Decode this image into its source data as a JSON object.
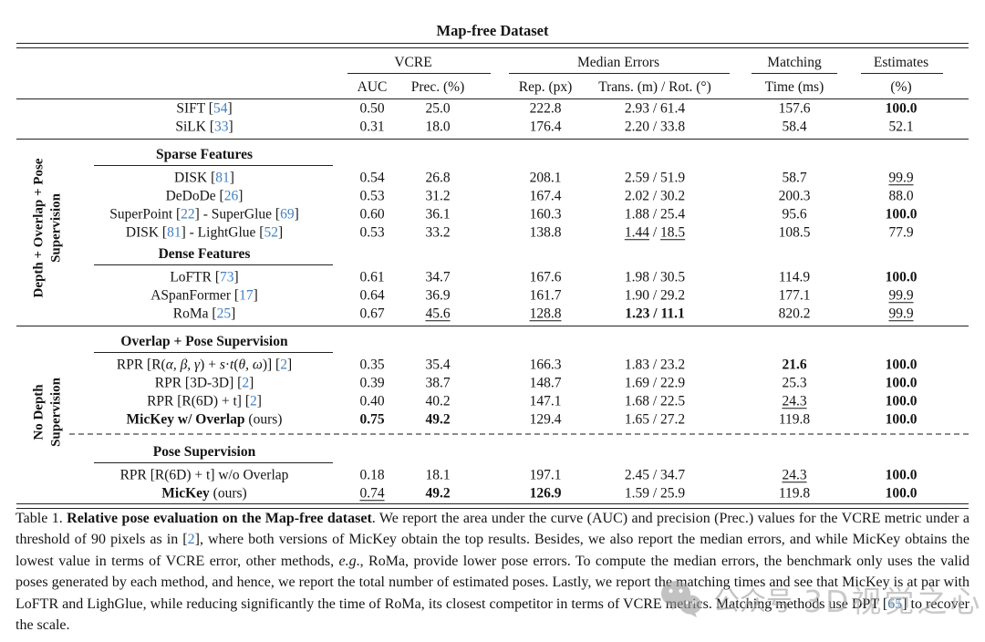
{
  "title": "Map-free Dataset",
  "colors": {
    "citation_blue": "#4080c0",
    "rule": "#222222",
    "watermark_gray": "#9b9b9b"
  },
  "header": {
    "groups": [
      {
        "label": "VCRE"
      },
      {
        "label": "Median Errors"
      },
      {
        "label": "Matching"
      },
      {
        "label": "Estimates"
      }
    ],
    "subs": [
      {
        "key": "auc",
        "label": "AUC"
      },
      {
        "key": "prec",
        "label": "Prec. (%)"
      },
      {
        "key": "rep",
        "label": "Rep. (px)"
      },
      {
        "key": "tr",
        "label": "Trans. (m) / Rot. (°)"
      },
      {
        "key": "time",
        "label": "Time (ms)"
      },
      {
        "key": "est",
        "label": "(%)"
      }
    ]
  },
  "side_labels": [
    {
      "lines": [
        "Depth + Overlap + Pose",
        "Supervision"
      ]
    },
    {
      "lines": [
        "No Depth",
        "Supervision"
      ]
    }
  ],
  "rows": [
    {
      "type": "data",
      "method": [
        {
          "t": "SIFT ["
        },
        {
          "t": "54",
          "s": "cite"
        },
        {
          "t": "]"
        }
      ],
      "auc": {
        "t": "0.50"
      },
      "prec": {
        "t": "25.0"
      },
      "rep": {
        "t": "222.8"
      },
      "trans": {
        "t": "2.93"
      },
      "rot": {
        "t": "61.4"
      },
      "time": {
        "t": "157.6"
      },
      "est": {
        "t": "100.0",
        "s": "b"
      }
    },
    {
      "type": "data",
      "method": [
        {
          "t": "SiLK ["
        },
        {
          "t": "33",
          "s": "cite"
        },
        {
          "t": "]"
        }
      ],
      "auc": {
        "t": "0.31"
      },
      "prec": {
        "t": "18.0"
      },
      "rep": {
        "t": "176.4"
      },
      "trans": {
        "t": "2.20"
      },
      "rot": {
        "t": "33.8"
      },
      "time": {
        "t": "58.4"
      },
      "est": {
        "t": "52.1"
      }
    },
    {
      "type": "rule"
    },
    {
      "type": "subheader",
      "label": "Sparse Features"
    },
    {
      "type": "data",
      "method": [
        {
          "t": "DISK ["
        },
        {
          "t": "81",
          "s": "cite"
        },
        {
          "t": "]"
        }
      ],
      "auc": {
        "t": "0.54"
      },
      "prec": {
        "t": "26.8"
      },
      "rep": {
        "t": "208.1"
      },
      "trans": {
        "t": "2.59"
      },
      "rot": {
        "t": "51.9"
      },
      "time": {
        "t": "58.7"
      },
      "est": {
        "t": "99.9",
        "s": "u"
      }
    },
    {
      "type": "data",
      "method": [
        {
          "t": "DeDoDe ["
        },
        {
          "t": "26",
          "s": "cite"
        },
        {
          "t": "]"
        }
      ],
      "auc": {
        "t": "0.53"
      },
      "prec": {
        "t": "31.2"
      },
      "rep": {
        "t": "167.4"
      },
      "trans": {
        "t": "2.02"
      },
      "rot": {
        "t": "30.2"
      },
      "time": {
        "t": "200.3"
      },
      "est": {
        "t": "88.0"
      }
    },
    {
      "type": "data",
      "method": [
        {
          "t": "SuperPoint ["
        },
        {
          "t": "22",
          "s": "cite"
        },
        {
          "t": "] - SuperGlue ["
        },
        {
          "t": "69",
          "s": "cite"
        },
        {
          "t": "]"
        }
      ],
      "auc": {
        "t": "0.60"
      },
      "prec": {
        "t": "36.1"
      },
      "rep": {
        "t": "160.3"
      },
      "trans": {
        "t": "1.88"
      },
      "rot": {
        "t": "25.4"
      },
      "time": {
        "t": "95.6"
      },
      "est": {
        "t": "100.0",
        "s": "b"
      }
    },
    {
      "type": "data",
      "method": [
        {
          "t": "DISK ["
        },
        {
          "t": "81",
          "s": "cite"
        },
        {
          "t": "] - LightGlue ["
        },
        {
          "t": "52",
          "s": "cite"
        },
        {
          "t": "]"
        }
      ],
      "auc": {
        "t": "0.53"
      },
      "prec": {
        "t": "33.2"
      },
      "rep": {
        "t": "138.8"
      },
      "trans": {
        "t": "1.44",
        "s": "u"
      },
      "rot": {
        "t": "18.5",
        "s": "u"
      },
      "time": {
        "t": "108.5"
      },
      "est": {
        "t": "77.9"
      }
    },
    {
      "type": "subheader",
      "label": "Dense Features"
    },
    {
      "type": "data",
      "method": [
        {
          "t": "LoFTR ["
        },
        {
          "t": "73",
          "s": "cite"
        },
        {
          "t": "]"
        }
      ],
      "auc": {
        "t": "0.61"
      },
      "prec": {
        "t": "34.7"
      },
      "rep": {
        "t": "167.6"
      },
      "trans": {
        "t": "1.98"
      },
      "rot": {
        "t": "30.5"
      },
      "time": {
        "t": "114.9"
      },
      "est": {
        "t": "100.0",
        "s": "b"
      }
    },
    {
      "type": "data",
      "method": [
        {
          "t": "ASpanFormer ["
        },
        {
          "t": "17",
          "s": "cite"
        },
        {
          "t": "]"
        }
      ],
      "auc": {
        "t": "0.64"
      },
      "prec": {
        "t": "36.9"
      },
      "rep": {
        "t": "161.7"
      },
      "trans": {
        "t": "1.90"
      },
      "rot": {
        "t": "29.2"
      },
      "time": {
        "t": "177.1"
      },
      "est": {
        "t": "99.9",
        "s": "u"
      }
    },
    {
      "type": "data",
      "method": [
        {
          "t": "RoMa ["
        },
        {
          "t": "25",
          "s": "cite"
        },
        {
          "t": "]"
        }
      ],
      "auc": {
        "t": "0.67"
      },
      "prec": {
        "t": "45.6",
        "s": "u"
      },
      "rep": {
        "t": "128.8",
        "s": "u"
      },
      "trans": {
        "t": "1.23",
        "s": "b"
      },
      "rot": {
        "t": "11.1",
        "s": "b"
      },
      "time": {
        "t": "820.2"
      },
      "est": {
        "t": "99.9",
        "s": "u"
      }
    },
    {
      "type": "rule"
    },
    {
      "type": "subheader",
      "label": "Overlap + Pose Supervision"
    },
    {
      "type": "data",
      "method": [
        {
          "t": "RPR [R("
        },
        {
          "t": "α, β, γ",
          "s": "i"
        },
        {
          "t": ") + "
        },
        {
          "t": "s",
          "s": "i"
        },
        {
          "t": "·"
        },
        {
          "t": "t",
          "s": "i"
        },
        {
          "t": "("
        },
        {
          "t": "θ, ω",
          "s": "i"
        },
        {
          "t": ")] ["
        },
        {
          "t": "2",
          "s": "cite"
        },
        {
          "t": "]"
        }
      ],
      "auc": {
        "t": "0.35"
      },
      "prec": {
        "t": "35.4"
      },
      "rep": {
        "t": "166.3"
      },
      "trans": {
        "t": "1.83"
      },
      "rot": {
        "t": "23.2"
      },
      "time": {
        "t": "21.6",
        "s": "b"
      },
      "est": {
        "t": "100.0",
        "s": "b"
      }
    },
    {
      "type": "data",
      "method": [
        {
          "t": "RPR [3D-3D] ["
        },
        {
          "t": "2",
          "s": "cite"
        },
        {
          "t": "]"
        }
      ],
      "auc": {
        "t": "0.39"
      },
      "prec": {
        "t": "38.7"
      },
      "rep": {
        "t": "148.7"
      },
      "trans": {
        "t": "1.69"
      },
      "rot": {
        "t": "22.9"
      },
      "time": {
        "t": "25.3"
      },
      "est": {
        "t": "100.0",
        "s": "b"
      }
    },
    {
      "type": "data",
      "method": [
        {
          "t": "RPR [R(6D) + t] ["
        },
        {
          "t": "2",
          "s": "cite"
        },
        {
          "t": "]"
        }
      ],
      "auc": {
        "t": "0.40"
      },
      "prec": {
        "t": "40.2"
      },
      "rep": {
        "t": "147.1"
      },
      "trans": {
        "t": "1.68"
      },
      "rot": {
        "t": "22.5"
      },
      "time": {
        "t": "24.3",
        "s": "u"
      },
      "est": {
        "t": "100.0",
        "s": "b"
      }
    },
    {
      "type": "data",
      "method": [
        {
          "t": "MicKey w/ Overlap",
          "s": "b"
        },
        {
          "t": " (ours)"
        }
      ],
      "auc": {
        "t": "0.75",
        "s": "b"
      },
      "prec": {
        "t": "49.2",
        "s": "b"
      },
      "rep": {
        "t": "129.4"
      },
      "trans": {
        "t": "1.65"
      },
      "rot": {
        "t": "27.2"
      },
      "time": {
        "t": "119.8"
      },
      "est": {
        "t": "100.0",
        "s": "b"
      }
    },
    {
      "type": "dashed"
    },
    {
      "type": "subheader",
      "label": "Pose Supervision"
    },
    {
      "type": "data",
      "method": [
        {
          "t": "RPR [R(6D) + t] w/o Overlap"
        }
      ],
      "auc": {
        "t": "0.18"
      },
      "prec": {
        "t": "18.1"
      },
      "rep": {
        "t": "197.1"
      },
      "trans": {
        "t": "2.45"
      },
      "rot": {
        "t": "34.7"
      },
      "time": {
        "t": "24.3",
        "s": "u"
      },
      "est": {
        "t": "100.0",
        "s": "b"
      }
    },
    {
      "type": "data",
      "method": [
        {
          "t": "MicKey",
          "s": "b"
        },
        {
          "t": " (ours)"
        }
      ],
      "auc": {
        "t": "0.74",
        "s": "u"
      },
      "prec": {
        "t": "49.2",
        "s": "b"
      },
      "rep": {
        "t": "126.9",
        "s": "b"
      },
      "trans": {
        "t": "1.59"
      },
      "rot": {
        "t": "25.9"
      },
      "time": {
        "t": "119.8"
      },
      "est": {
        "t": "100.0",
        "s": "b"
      }
    }
  ],
  "caption": {
    "segments": [
      {
        "t": "Table 1. "
      },
      {
        "t": "Relative pose evaluation on the Map-free dataset",
        "s": "b"
      },
      {
        "t": ". We report the area under the curve (AUC) and precision (Prec.) values for the VCRE metric under a threshold of 90 pixels as in ["
      },
      {
        "t": "2",
        "s": "cite"
      },
      {
        "t": "], where both versions of MicKey obtain the top results. Besides, we also report the median errors, and while MicKey obtains the lowest value in terms of VCRE error, other methods, "
      },
      {
        "t": "e.g",
        "s": "i"
      },
      {
        "t": "., RoMa, provide lower pose errors. To compute the median errors, the benchmark only uses the valid poses generated by each method, and hence, we report the total number of estimated poses. Lastly, we report the matching times and see that MicKey is at par with LoFTR and LighGlue, while reducing significantly the time of RoMa, its closest competitor in terms of VCRE metrics. Matching methods use DPT ["
      },
      {
        "t": "65",
        "s": "cite"
      },
      {
        "t": "] to recover the scale."
      }
    ]
  },
  "watermark": {
    "icon": "wechat-icon",
    "text1": "公众号",
    "text2": "3D视觉之心"
  }
}
